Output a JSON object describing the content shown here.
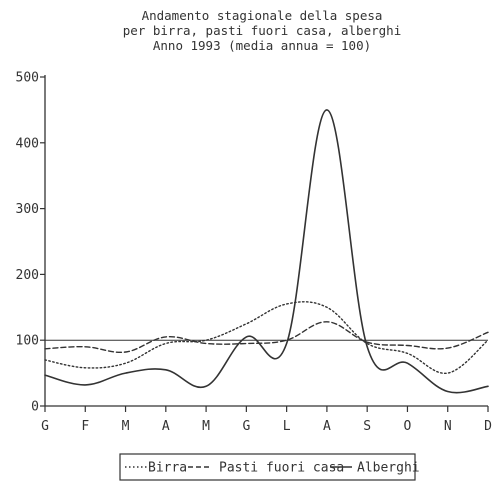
{
  "chart_data": {
    "type": "line",
    "title_lines": [
      "Andamento stagionale della spesa",
      "per birra, pasti fuori casa, alberghi",
      "Anno 1993 (media annua = 100)"
    ],
    "xlabel": "",
    "ylabel": "",
    "categories": [
      "G",
      "F",
      "M",
      "A",
      "M",
      "G",
      "L",
      "A",
      "S",
      "O",
      "N",
      "D"
    ],
    "y_ticks": [
      "0",
      "100",
      "200",
      "300",
      "400",
      "500"
    ],
    "ylim": [
      0,
      500
    ],
    "grid": false,
    "reference_line": 100,
    "legend_position": "bottom",
    "series": [
      {
        "name": "Birra",
        "style": "dotted",
        "values": [
          70,
          58,
          65,
          95,
          100,
          125,
          155,
          150,
          95,
          80,
          50,
          100
        ]
      },
      {
        "name": "Pasti fuori casa",
        "style": "dashed",
        "values": [
          87,
          90,
          82,
          105,
          95,
          95,
          100,
          128,
          97,
          92,
          88,
          112
        ]
      },
      {
        "name": "Alberghi",
        "style": "solid",
        "values": [
          47,
          32,
          50,
          55,
          30,
          105,
          95,
          450,
          90,
          65,
          22,
          30
        ]
      }
    ]
  },
  "colors": {
    "ink": "#333333",
    "background": "#ffffff"
  }
}
